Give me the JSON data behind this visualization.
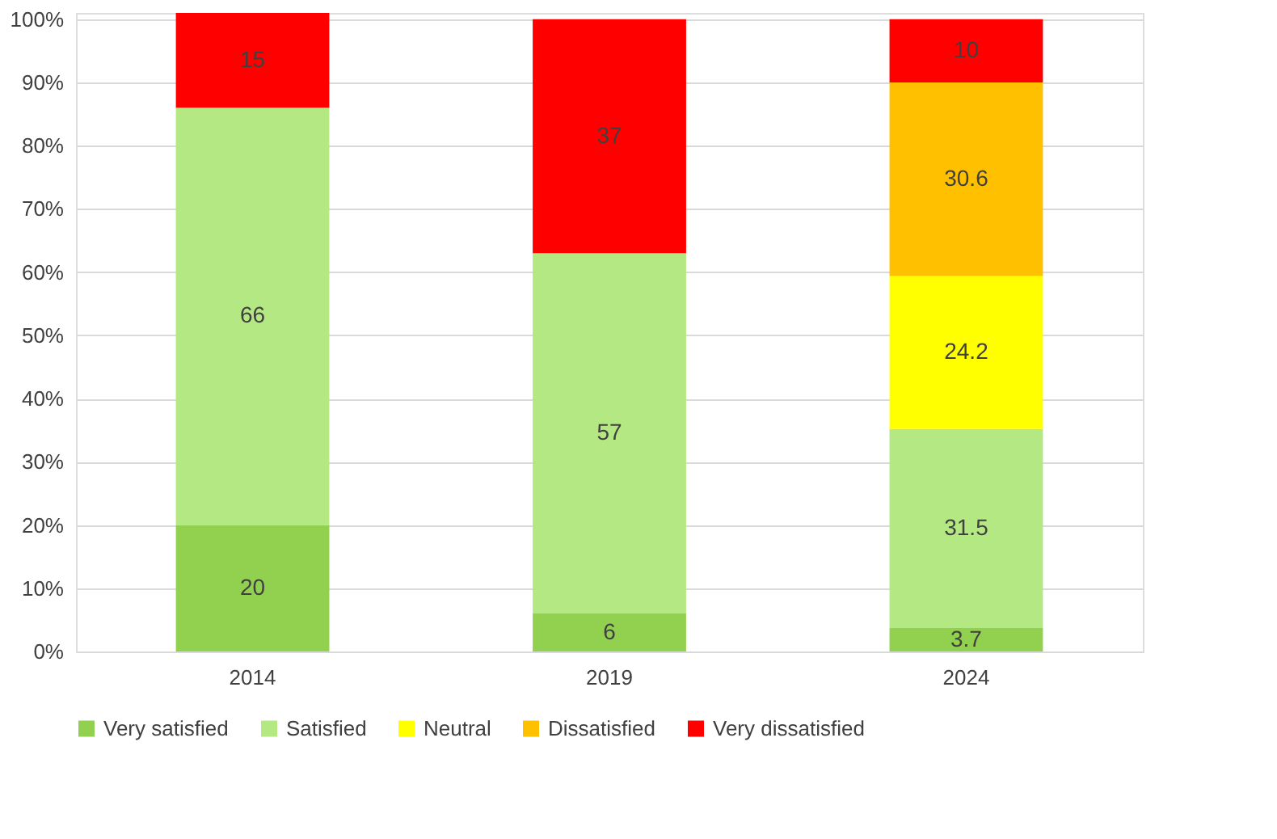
{
  "chart_data": {
    "type": "bar",
    "stacked": true,
    "categories": [
      "2014",
      "2019",
      "2024"
    ],
    "series": [
      {
        "name": "Very satisfied",
        "color": "#92d050",
        "values": [
          20,
          6,
          3.7
        ]
      },
      {
        "name": "Satisfied",
        "color": "#b4e882",
        "values": [
          66,
          57,
          31.5
        ]
      },
      {
        "name": "Neutral",
        "color": "#ffff00",
        "values": [
          null,
          null,
          24.2
        ]
      },
      {
        "name": "Dissatisfied",
        "color": "#ffc000",
        "values": [
          null,
          null,
          30.6
        ]
      },
      {
        "name": "Very dissatisfied",
        "color": "#ff0000",
        "values": [
          15,
          37,
          10
        ]
      }
    ],
    "ylim": [
      0,
      101
    ],
    "yticks": [
      {
        "value": 0,
        "label": "0%"
      },
      {
        "value": 10,
        "label": "10%"
      },
      {
        "value": 20,
        "label": "20%"
      },
      {
        "value": 30,
        "label": "30%"
      },
      {
        "value": 40,
        "label": "40%"
      },
      {
        "value": 50,
        "label": "50%"
      },
      {
        "value": 60,
        "label": "60%"
      },
      {
        "value": 70,
        "label": "70%"
      },
      {
        "value": 80,
        "label": "80%"
      },
      {
        "value": 90,
        "label": "90%"
      },
      {
        "value": 100,
        "label": "100%"
      }
    ],
    "grid": "y",
    "legend": "bottom",
    "data_labels": true
  }
}
